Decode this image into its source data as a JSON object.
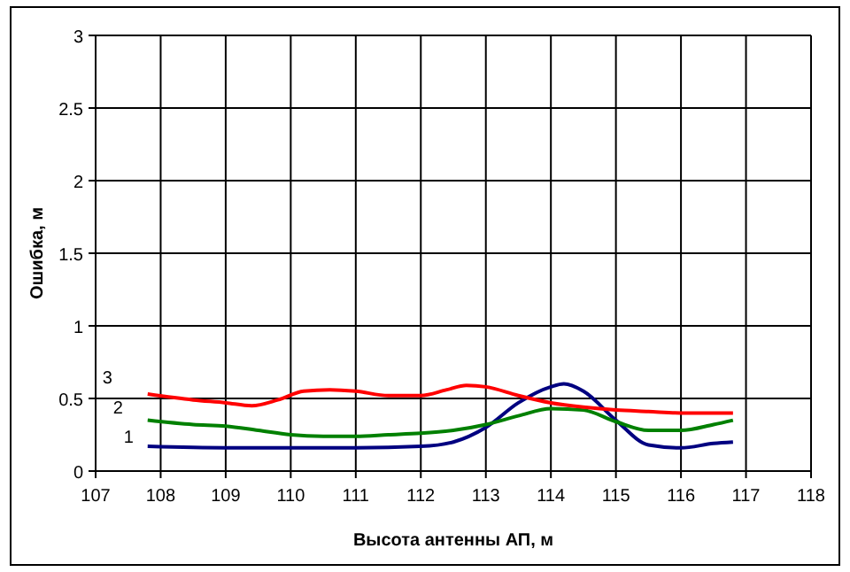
{
  "chart_data": {
    "type": "line",
    "xlabel": "Высота антенны АП, м",
    "ylabel": "Ошибка, м",
    "xlim": [
      107,
      118
    ],
    "xticks": [
      107,
      108,
      109,
      110,
      111,
      112,
      113,
      114,
      115,
      116,
      117,
      118
    ],
    "ylim": [
      0,
      3
    ],
    "yticks": [
      0,
      0.5,
      1,
      1.5,
      2,
      2.5,
      3
    ],
    "grid": true,
    "marker": "none",
    "line_style": "solid",
    "series": [
      {
        "name": "1",
        "color": "#000080",
        "x": [
          107.8,
          109,
          110,
          111,
          112,
          112.5,
          113,
          113.5,
          114,
          114.2,
          114.5,
          115,
          115.5,
          116,
          116.5,
          116.8
        ],
        "values": [
          0.17,
          0.16,
          0.16,
          0.16,
          0.17,
          0.2,
          0.3,
          0.47,
          0.58,
          0.6,
          0.55,
          0.35,
          0.18,
          0.16,
          0.19,
          0.2
        ]
      },
      {
        "name": "2",
        "color": "#008000",
        "x": [
          107.8,
          108.5,
          109,
          109.5,
          110,
          110.5,
          111,
          111.5,
          112,
          112.5,
          113,
          113.5,
          114,
          114.5,
          115,
          115.5,
          116,
          116.5,
          116.8
        ],
        "values": [
          0.35,
          0.32,
          0.31,
          0.28,
          0.25,
          0.24,
          0.24,
          0.25,
          0.26,
          0.28,
          0.32,
          0.38,
          0.43,
          0.42,
          0.34,
          0.28,
          0.28,
          0.32,
          0.35
        ]
      },
      {
        "name": "3",
        "color": "#ff0000",
        "x": [
          107.8,
          108.5,
          109,
          109.4,
          109.8,
          110.2,
          110.6,
          111,
          111.5,
          112,
          112.4,
          112.7,
          113,
          113.5,
          114,
          114.5,
          115,
          115.5,
          116,
          116.8
        ],
        "values": [
          0.53,
          0.49,
          0.47,
          0.45,
          0.49,
          0.55,
          0.56,
          0.55,
          0.52,
          0.52,
          0.56,
          0.59,
          0.58,
          0.52,
          0.47,
          0.44,
          0.42,
          0.41,
          0.4,
          0.4
        ]
      }
    ]
  }
}
